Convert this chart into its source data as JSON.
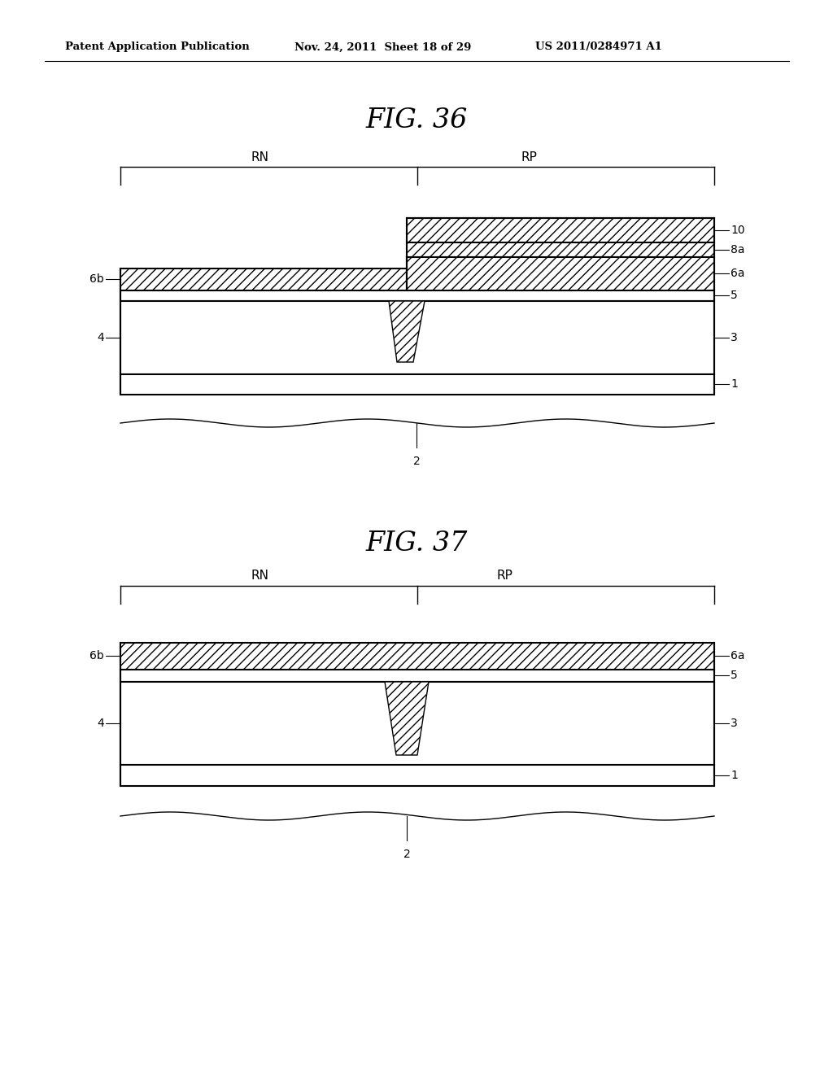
{
  "title_header": "Patent Application Publication",
  "date_header": "Nov. 24, 2011  Sheet 18 of 29",
  "patent_header": "US 2011/0284971 A1",
  "fig36_title": "FIG. 36",
  "fig37_title": "FIG. 37",
  "background": "#ffffff",
  "line_color": "#000000"
}
